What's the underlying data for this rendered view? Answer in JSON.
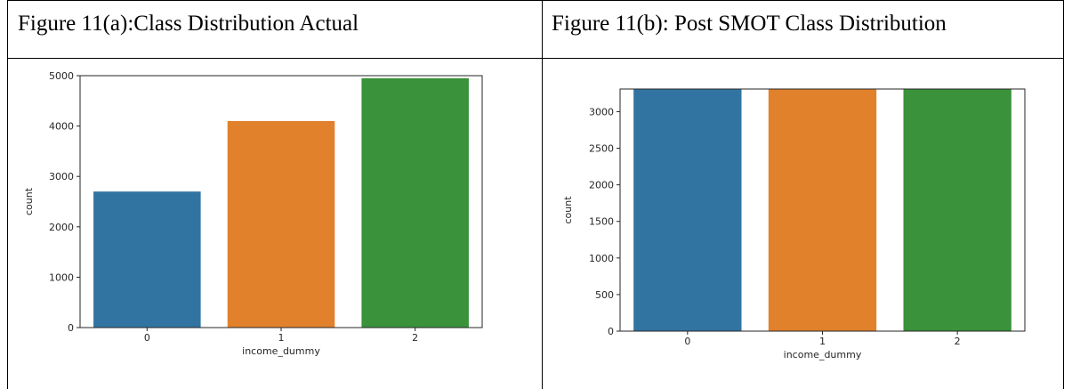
{
  "table": {
    "cell_a_caption": "Figure 11(a):Class Distribution Actual",
    "cell_b_caption": "Figure 11(b): Post SMOT Class Distribution"
  },
  "chart_data": [
    {
      "type": "bar",
      "categories": [
        "0",
        "1",
        "2"
      ],
      "values": [
        2700,
        4100,
        4950
      ],
      "colors": [
        "#3274a1",
        "#e1812c",
        "#3a923a"
      ],
      "title": "",
      "xlabel": "income_dummy",
      "ylabel": "count",
      "ylim": [
        0,
        5000
      ],
      "yticks": [
        0,
        1000,
        2000,
        3000,
        4000,
        5000
      ],
      "grid": false
    },
    {
      "type": "bar",
      "categories": [
        "0",
        "1",
        "2"
      ],
      "values": [
        3310,
        3310,
        3310
      ],
      "colors": [
        "#3274a1",
        "#e1812c",
        "#3a923a"
      ],
      "title": "",
      "xlabel": "income_dummy",
      "ylabel": "count",
      "ylim": [
        0,
        3310
      ],
      "yticks": [
        0,
        500,
        1000,
        1500,
        2000,
        2500,
        3000
      ],
      "grid": false
    }
  ]
}
